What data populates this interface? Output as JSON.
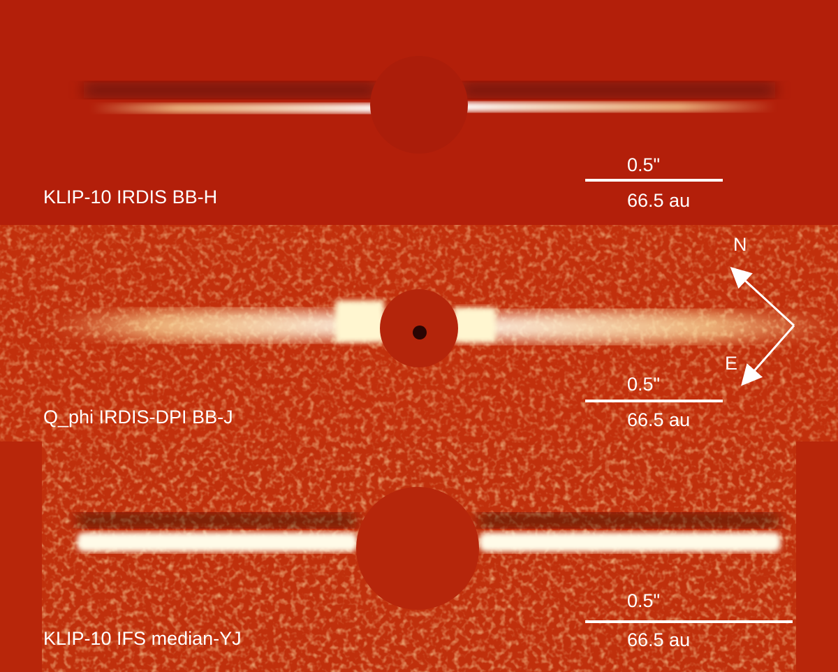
{
  "panels": [
    {
      "label": "KLIP-10 IRDIS BB-H",
      "scale_angle": "0.5\"",
      "scale_distance": "66.5 au"
    },
    {
      "label": "Q_phi IRDIS-DPI BB-J",
      "scale_angle": "0.5\"",
      "scale_distance": "66.5 au"
    },
    {
      "label": "KLIP-10 IFS median-YJ",
      "scale_angle": "0.5\"",
      "scale_distance": "66.5 au"
    }
  ],
  "compass": {
    "north": "N",
    "east": "E"
  }
}
